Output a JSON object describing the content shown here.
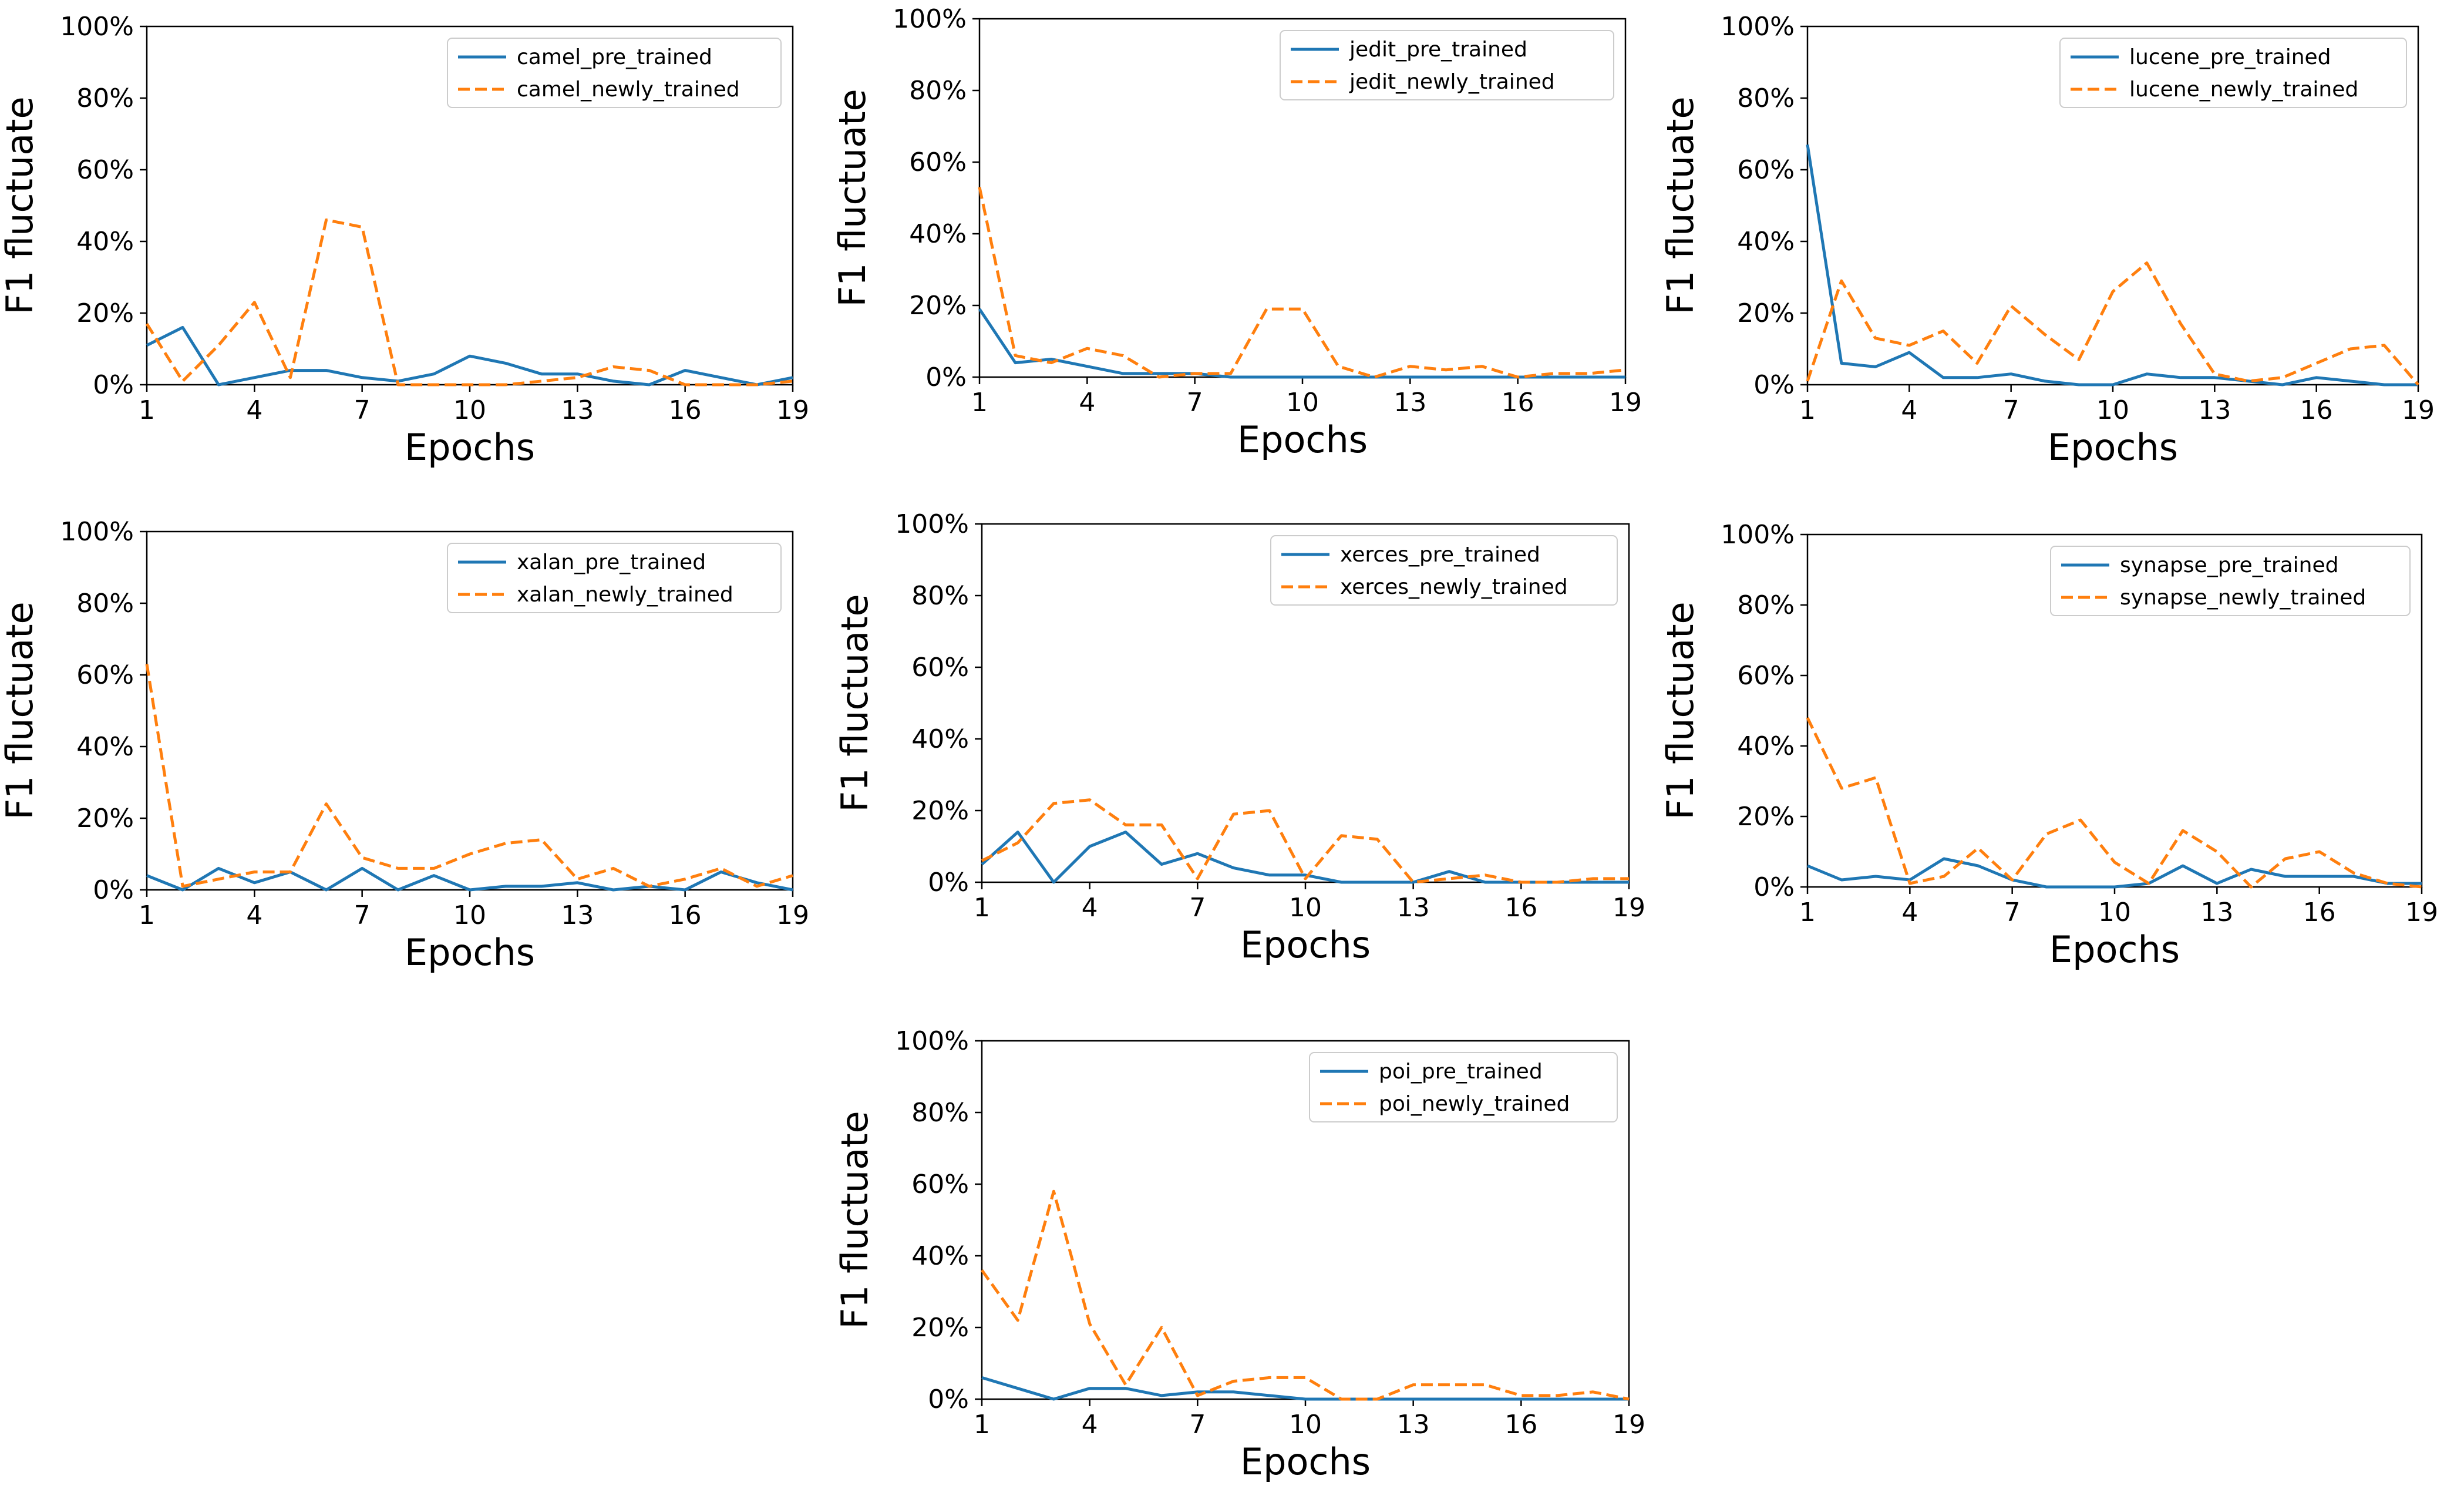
{
  "figure": {
    "description_ylabel": "F1 fluctuate",
    "xlabel": "Epochs"
  },
  "colors": {
    "pre_trained": "#1f77b4",
    "newly_trained": "#ff7f0e"
  },
  "chart_data": [
    {
      "type": "line",
      "title": "",
      "xlabel": "Epochs",
      "ylabel": "F1 fluctuate",
      "xlim": [
        1,
        19
      ],
      "ylim": [
        0,
        100
      ],
      "grid": false,
      "legend": "top-right",
      "xticks": [
        1,
        4,
        7,
        10,
        13,
        16,
        19
      ],
      "xtick_labels": [
        "1",
        "4",
        "7",
        "10",
        "13",
        "16",
        "19"
      ],
      "yticks": [
        0,
        20,
        40,
        60,
        80,
        100
      ],
      "ytick_labels": [
        "0%",
        "20%",
        "40%",
        "60%",
        "80%",
        "100%"
      ],
      "x": [
        1,
        2,
        3,
        4,
        5,
        6,
        7,
        8,
        9,
        10,
        11,
        12,
        13,
        14,
        15,
        16,
        17,
        18,
        19
      ],
      "series": [
        {
          "name": "camel_pre_trained",
          "style": "solid",
          "values": [
            11,
            16,
            0,
            2,
            4,
            4,
            2,
            1,
            3,
            8,
            6,
            3,
            3,
            1,
            0,
            4,
            2,
            0,
            2
          ]
        },
        {
          "name": "camel_newly_trained",
          "style": "dashed",
          "values": [
            17,
            1,
            11,
            23,
            2,
            46,
            44,
            0,
            0,
            0,
            0,
            1,
            2,
            5,
            4,
            0,
            0,
            0,
            1
          ]
        }
      ]
    },
    {
      "type": "line",
      "title": "",
      "xlabel": "Epochs",
      "ylabel": "F1 fluctuate",
      "xlim": [
        1,
        19
      ],
      "ylim": [
        0,
        100
      ],
      "grid": false,
      "legend": "top-right",
      "xticks": [
        1,
        4,
        7,
        10,
        13,
        16,
        19
      ],
      "xtick_labels": [
        "1",
        "4",
        "7",
        "10",
        "13",
        "16",
        "19"
      ],
      "yticks": [
        0,
        20,
        40,
        60,
        80,
        100
      ],
      "ytick_labels": [
        "0%",
        "20%",
        "40%",
        "60%",
        "80%",
        "100%"
      ],
      "x": [
        1,
        2,
        3,
        4,
        5,
        6,
        7,
        8,
        9,
        10,
        11,
        12,
        13,
        14,
        15,
        16,
        17,
        18,
        19
      ],
      "series": [
        {
          "name": "jedit_pre_trained",
          "style": "solid",
          "values": [
            19,
            4,
            5,
            3,
            1,
            1,
            1,
            0,
            0,
            0,
            0,
            0,
            0,
            0,
            0,
            0,
            0,
            0,
            0
          ]
        },
        {
          "name": "jedit_newly_trained",
          "style": "dashed",
          "values": [
            53,
            6,
            4,
            8,
            6,
            0,
            1,
            1,
            19,
            19,
            3,
            0,
            3,
            2,
            3,
            0,
            1,
            1,
            2
          ]
        }
      ]
    },
    {
      "type": "line",
      "title": "",
      "xlabel": "Epochs",
      "ylabel": "F1 fluctuate",
      "xlim": [
        1,
        19
      ],
      "ylim": [
        0,
        100
      ],
      "grid": false,
      "legend": "top-right",
      "xticks": [
        1,
        4,
        7,
        10,
        13,
        16,
        19
      ],
      "xtick_labels": [
        "1",
        "4",
        "7",
        "10",
        "13",
        "16",
        "19"
      ],
      "yticks": [
        0,
        20,
        40,
        60,
        80,
        100
      ],
      "ytick_labels": [
        "0%",
        "20%",
        "40%",
        "60%",
        "80%",
        "100%"
      ],
      "x": [
        1,
        2,
        3,
        4,
        5,
        6,
        7,
        8,
        9,
        10,
        11,
        12,
        13,
        14,
        15,
        16,
        17,
        18,
        19
      ],
      "series": [
        {
          "name": "lucene_pre_trained",
          "style": "solid",
          "values": [
            67,
            6,
            5,
            9,
            2,
            2,
            3,
            1,
            0,
            0,
            3,
            2,
            2,
            1,
            0,
            2,
            1,
            0,
            0
          ]
        },
        {
          "name": "lucene_newly_trained",
          "style": "dashed",
          "values": [
            1,
            29,
            13,
            11,
            15,
            6,
            22,
            14,
            7,
            26,
            34,
            17,
            3,
            1,
            2,
            6,
            10,
            11,
            0
          ]
        }
      ]
    },
    {
      "type": "line",
      "title": "",
      "xlabel": "Epochs",
      "ylabel": "F1 fluctuate",
      "xlim": [
        1,
        19
      ],
      "ylim": [
        0,
        100
      ],
      "grid": false,
      "legend": "top-right",
      "xticks": [
        1,
        4,
        7,
        10,
        13,
        16,
        19
      ],
      "xtick_labels": [
        "1",
        "4",
        "7",
        "10",
        "13",
        "16",
        "19"
      ],
      "yticks": [
        0,
        20,
        40,
        60,
        80,
        100
      ],
      "ytick_labels": [
        "0%",
        "20%",
        "40%",
        "60%",
        "80%",
        "100%"
      ],
      "x": [
        1,
        2,
        3,
        4,
        5,
        6,
        7,
        8,
        9,
        10,
        11,
        12,
        13,
        14,
        15,
        16,
        17,
        18,
        19
      ],
      "series": [
        {
          "name": "xalan_pre_trained",
          "style": "solid",
          "values": [
            4,
            0,
            6,
            2,
            5,
            0,
            6,
            0,
            4,
            0,
            1,
            1,
            2,
            0,
            1,
            0,
            5,
            2,
            0
          ]
        },
        {
          "name": "xalan_newly_trained",
          "style": "dashed",
          "values": [
            63,
            1,
            3,
            5,
            5,
            24,
            9,
            6,
            6,
            10,
            13,
            14,
            3,
            6,
            1,
            3,
            6,
            1,
            4
          ]
        }
      ]
    },
    {
      "type": "line",
      "title": "",
      "xlabel": "Epochs",
      "ylabel": "F1 fluctuate",
      "xlim": [
        1,
        19
      ],
      "ylim": [
        0,
        100
      ],
      "grid": false,
      "legend": "top-right",
      "xticks": [
        1,
        4,
        7,
        10,
        13,
        16,
        19
      ],
      "xtick_labels": [
        "1",
        "4",
        "7",
        "10",
        "13",
        "16",
        "19"
      ],
      "yticks": [
        0,
        20,
        40,
        60,
        80,
        100
      ],
      "ytick_labels": [
        "0%",
        "20%",
        "40%",
        "60%",
        "80%",
        "100%"
      ],
      "x": [
        1,
        2,
        3,
        4,
        5,
        6,
        7,
        8,
        9,
        10,
        11,
        12,
        13,
        14,
        15,
        16,
        17,
        18,
        19
      ],
      "series": [
        {
          "name": "xerces_pre_trained",
          "style": "solid",
          "values": [
            5,
            14,
            0,
            10,
            14,
            5,
            8,
            4,
            2,
            2,
            0,
            0,
            0,
            3,
            0,
            0,
            0,
            0,
            0
          ]
        },
        {
          "name": "xerces_newly_trained",
          "style": "dashed",
          "values": [
            6,
            11,
            22,
            23,
            16,
            16,
            1,
            19,
            20,
            1,
            13,
            12,
            0,
            1,
            2,
            0,
            0,
            1,
            1
          ]
        }
      ]
    },
    {
      "type": "line",
      "title": "",
      "xlabel": "Epochs",
      "ylabel": "F1 fluctuate",
      "xlim": [
        1,
        19
      ],
      "ylim": [
        0,
        100
      ],
      "grid": false,
      "legend": "top-right",
      "xticks": [
        1,
        4,
        7,
        10,
        13,
        16,
        19
      ],
      "xtick_labels": [
        "1",
        "4",
        "7",
        "10",
        "13",
        "16",
        "19"
      ],
      "yticks": [
        0,
        20,
        40,
        60,
        80,
        100
      ],
      "ytick_labels": [
        "0%",
        "20%",
        "40%",
        "60%",
        "80%",
        "100%"
      ],
      "x": [
        1,
        2,
        3,
        4,
        5,
        6,
        7,
        8,
        9,
        10,
        11,
        12,
        13,
        14,
        15,
        16,
        17,
        18,
        19
      ],
      "series": [
        {
          "name": "synapse_pre_trained",
          "style": "solid",
          "values": [
            6,
            2,
            3,
            2,
            8,
            6,
            2,
            0,
            0,
            0,
            1,
            6,
            1,
            5,
            3,
            3,
            3,
            1,
            1
          ]
        },
        {
          "name": "synapse_newly_trained",
          "style": "dashed",
          "values": [
            48,
            28,
            31,
            1,
            3,
            11,
            2,
            15,
            19,
            7,
            1,
            16,
            10,
            0,
            8,
            10,
            4,
            1,
            0
          ]
        }
      ]
    },
    {
      "type": "line",
      "title": "",
      "xlabel": "Epochs",
      "ylabel": "F1 fluctuate",
      "xlim": [
        1,
        19
      ],
      "ylim": [
        0,
        100
      ],
      "grid": false,
      "legend": "top-right",
      "xticks": [
        1,
        4,
        7,
        10,
        13,
        16,
        19
      ],
      "xtick_labels": [
        "1",
        "4",
        "7",
        "10",
        "13",
        "16",
        "19"
      ],
      "yticks": [
        0,
        20,
        40,
        60,
        80,
        100
      ],
      "ytick_labels": [
        "0%",
        "20%",
        "40%",
        "60%",
        "80%",
        "100%"
      ],
      "x": [
        1,
        2,
        3,
        4,
        5,
        6,
        7,
        8,
        9,
        10,
        11,
        12,
        13,
        14,
        15,
        16,
        17,
        18,
        19
      ],
      "series": [
        {
          "name": "poi_pre_trained",
          "style": "solid",
          "values": [
            6,
            3,
            0,
            3,
            3,
            1,
            2,
            2,
            1,
            0,
            0,
            0,
            0,
            0,
            0,
            0,
            0,
            0,
            0
          ]
        },
        {
          "name": "poi_newly_trained",
          "style": "dashed",
          "values": [
            36,
            22,
            58,
            21,
            4,
            20,
            1,
            5,
            6,
            6,
            0,
            0,
            4,
            4,
            4,
            1,
            1,
            2,
            0
          ]
        }
      ]
    }
  ]
}
